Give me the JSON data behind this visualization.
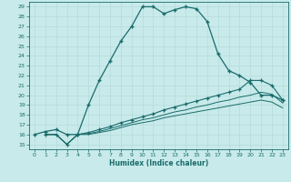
{
  "xlabel": "Humidex (Indice chaleur)",
  "bg_color": "#c8eaea",
  "line_color": "#1a6b6b",
  "grid_color": "#b0d8d8",
  "x_ticks": [
    0,
    1,
    2,
    3,
    4,
    5,
    6,
    7,
    8,
    9,
    10,
    11,
    12,
    13,
    14,
    15,
    16,
    17,
    18,
    19,
    20,
    21,
    22,
    23
  ],
  "y_ticks": [
    15,
    16,
    17,
    18,
    19,
    20,
    21,
    22,
    23,
    24,
    25,
    26,
    27,
    28,
    29
  ],
  "xlim": [
    -0.5,
    23.5
  ],
  "ylim": [
    14.5,
    29.5
  ],
  "line1_x": [
    0,
    1,
    2,
    3,
    4,
    5,
    6,
    7,
    8,
    9,
    10,
    11,
    12,
    13,
    14,
    15,
    16,
    17,
    18,
    19,
    20,
    21,
    22,
    23
  ],
  "line1_y": [
    16.0,
    16.3,
    16.5,
    16.0,
    16.0,
    19.0,
    21.5,
    23.5,
    25.5,
    27.0,
    29.0,
    29.0,
    28.3,
    28.7,
    29.0,
    28.8,
    27.5,
    24.2,
    22.5,
    22.0,
    21.3,
    20.0,
    20.0,
    19.5
  ],
  "line2_x": [
    1,
    2,
    3,
    4,
    5,
    6,
    7,
    8,
    9,
    10,
    11,
    12,
    13,
    14,
    15,
    16,
    17,
    18,
    19,
    20,
    21,
    22,
    23
  ],
  "line2_y": [
    16.0,
    16.0,
    15.0,
    16.0,
    16.2,
    16.5,
    16.8,
    17.2,
    17.5,
    17.8,
    18.1,
    18.5,
    18.8,
    19.1,
    19.4,
    19.7,
    20.0,
    20.3,
    20.6,
    21.5,
    21.5,
    21.0,
    19.5
  ],
  "line3_x": [
    1,
    2,
    3,
    4,
    5,
    6,
    7,
    8,
    9,
    10,
    11,
    12,
    13,
    14,
    15,
    16,
    17,
    18,
    19,
    20,
    21,
    22,
    23
  ],
  "line3_y": [
    16.0,
    16.0,
    15.0,
    16.0,
    16.1,
    16.3,
    16.6,
    16.9,
    17.2,
    17.5,
    17.7,
    18.0,
    18.3,
    18.5,
    18.8,
    19.0,
    19.3,
    19.5,
    19.8,
    20.0,
    20.3,
    20.1,
    19.2
  ],
  "line4_x": [
    1,
    2,
    3,
    4,
    5,
    6,
    7,
    8,
    9,
    10,
    11,
    12,
    13,
    14,
    15,
    16,
    17,
    18,
    19,
    20,
    21,
    22,
    23
  ],
  "line4_y": [
    16.0,
    16.0,
    15.0,
    16.0,
    16.0,
    16.2,
    16.4,
    16.7,
    17.0,
    17.2,
    17.4,
    17.7,
    17.9,
    18.1,
    18.3,
    18.5,
    18.7,
    18.9,
    19.1,
    19.3,
    19.5,
    19.3,
    18.7
  ]
}
